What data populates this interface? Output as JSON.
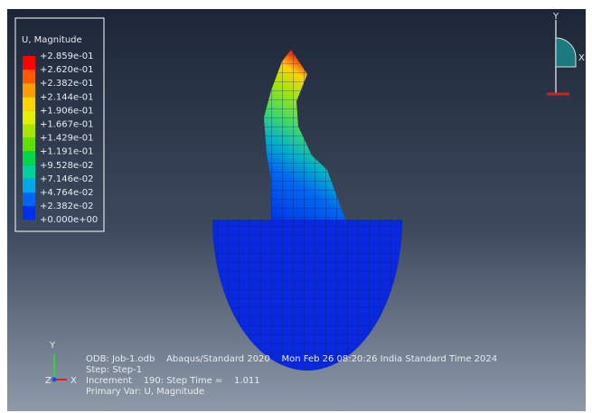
{
  "legend": {
    "title": "U, Magnitude",
    "entries": [
      "+2.859e-01",
      "+2.620e-01",
      "+2.382e-01",
      "+2.144e-01",
      "+1.906e-01",
      "+1.667e-01",
      "+1.429e-01",
      "+1.191e-01",
      "+9.528e-02",
      "+7.146e-02",
      "+4.764e-02",
      "+2.382e-02",
      "+0.000e+00"
    ],
    "colors": [
      "#ff0000",
      "#ff5a00",
      "#ff9c00",
      "#ffd200",
      "#e4f000",
      "#a8e600",
      "#5ee000",
      "#00d84a",
      "#00d0a0",
      "#00a8e8",
      "#0068f0",
      "#0030e8"
    ]
  },
  "info": {
    "lines": [
      "ODB: Job-1.odb    Abaqus/Standard 2020    Mon Feb 26 08:20:26 India Standard Time 2024",
      "Step: Step-1",
      "Increment    190: Step Time =    1.011",
      "Primary Var: U, Magnitude"
    ]
  },
  "triad": {
    "y": "Y",
    "x": "X",
    "z": "Z"
  },
  "view_triad": {
    "y": "Y",
    "x": "X"
  }
}
